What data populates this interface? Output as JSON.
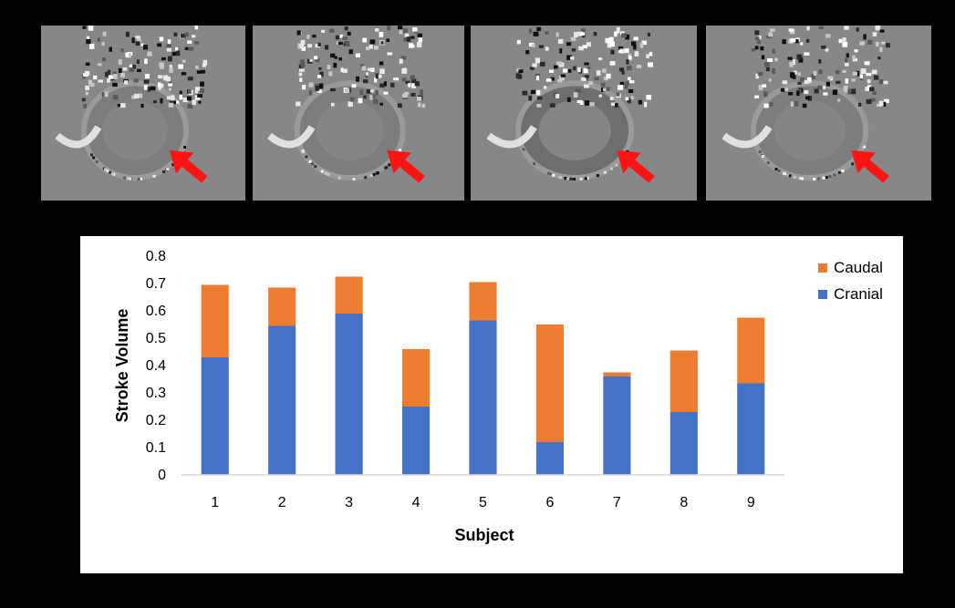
{
  "figure": {
    "panel_count": 4
  },
  "chart_data": {
    "type": "bar",
    "stacked": true,
    "categories": [
      "1",
      "2",
      "3",
      "4",
      "5",
      "6",
      "7",
      "8",
      "9"
    ],
    "series": [
      {
        "name": "Cranial",
        "color": "#4472C4",
        "values": [
          0.43,
          0.545,
          0.59,
          0.25,
          0.565,
          0.12,
          0.36,
          0.23,
          0.335
        ]
      },
      {
        "name": "Caudal",
        "color": "#ED7D31",
        "values": [
          0.265,
          0.14,
          0.135,
          0.21,
          0.14,
          0.43,
          0.015,
          0.225,
          0.24
        ]
      }
    ],
    "xlabel": "Subject",
    "ylabel": "Stroke Volume",
    "ylim": [
      0,
      0.8
    ],
    "yticks": [
      "0",
      "0.1",
      "0.2",
      "0.3",
      "0.4",
      "0.5",
      "0.6",
      "0.7",
      "0.8"
    ],
    "grid": false,
    "legend": {
      "position": "top-right",
      "order": [
        "Caudal",
        "Cranial"
      ]
    }
  }
}
